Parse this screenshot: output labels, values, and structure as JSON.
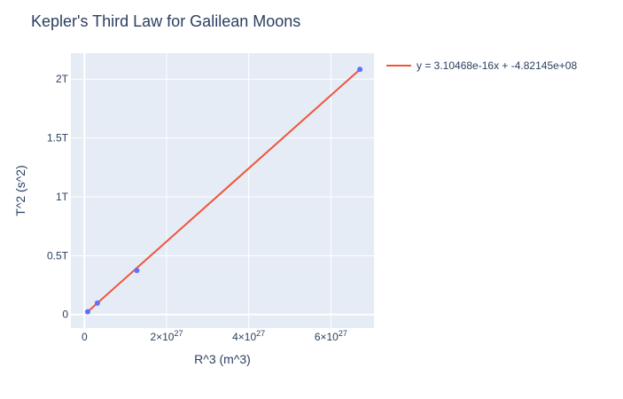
{
  "chart_data": {
    "type": "scatter",
    "title": "Kepler's Third Law for Galilean Moons",
    "xlabel": "R^3 (m^3)",
    "ylabel": "T^2 (s^2)",
    "xlim": [
      -3.3e+26,
      7.05e+27
    ],
    "ylim": [
      -115000000000.0,
      2220000000000.0
    ],
    "grid": true,
    "legend_position": "top-right outside",
    "x_ticks": [
      {
        "value": 0,
        "base": "0",
        "exp": ""
      },
      {
        "value": 2e+27,
        "base": "2×10",
        "exp": "27"
      },
      {
        "value": 4e+27,
        "base": "4×10",
        "exp": "27"
      },
      {
        "value": 6e+27,
        "base": "6×10",
        "exp": "27"
      }
    ],
    "y_ticks": [
      {
        "value": 0,
        "label": "0"
      },
      {
        "value": 500000000000.0,
        "label": "0.5T"
      },
      {
        "value": 1000000000000.0,
        "label": "1T"
      },
      {
        "value": 1500000000000.0,
        "label": "1.5T"
      },
      {
        "value": 2000000000000.0,
        "label": "2T"
      }
    ],
    "points": [
      {
        "x": 7.77e+25,
        "y": 23400000000.0
      },
      {
        "x": 3.146e+26,
        "y": 96500000000.0
      },
      {
        "x": 1.2755e+27,
        "y": 374400000000.0
      },
      {
        "x": 6.7073e+27,
        "y": 2082600000000.0
      }
    ],
    "fit_line": {
      "name": "y = 3.10468e-16x + -4.82145e+08",
      "slope": 3.10468e-16,
      "intercept": -482145000.0,
      "x_range": [
        7.77e+25,
        6.7073e+27
      ]
    },
    "colors": {
      "background": "#e5ecf6",
      "grid": "#ffffff",
      "points": "#636efa",
      "fit_line": "#ef553b",
      "text": "#2a3f5f"
    }
  }
}
